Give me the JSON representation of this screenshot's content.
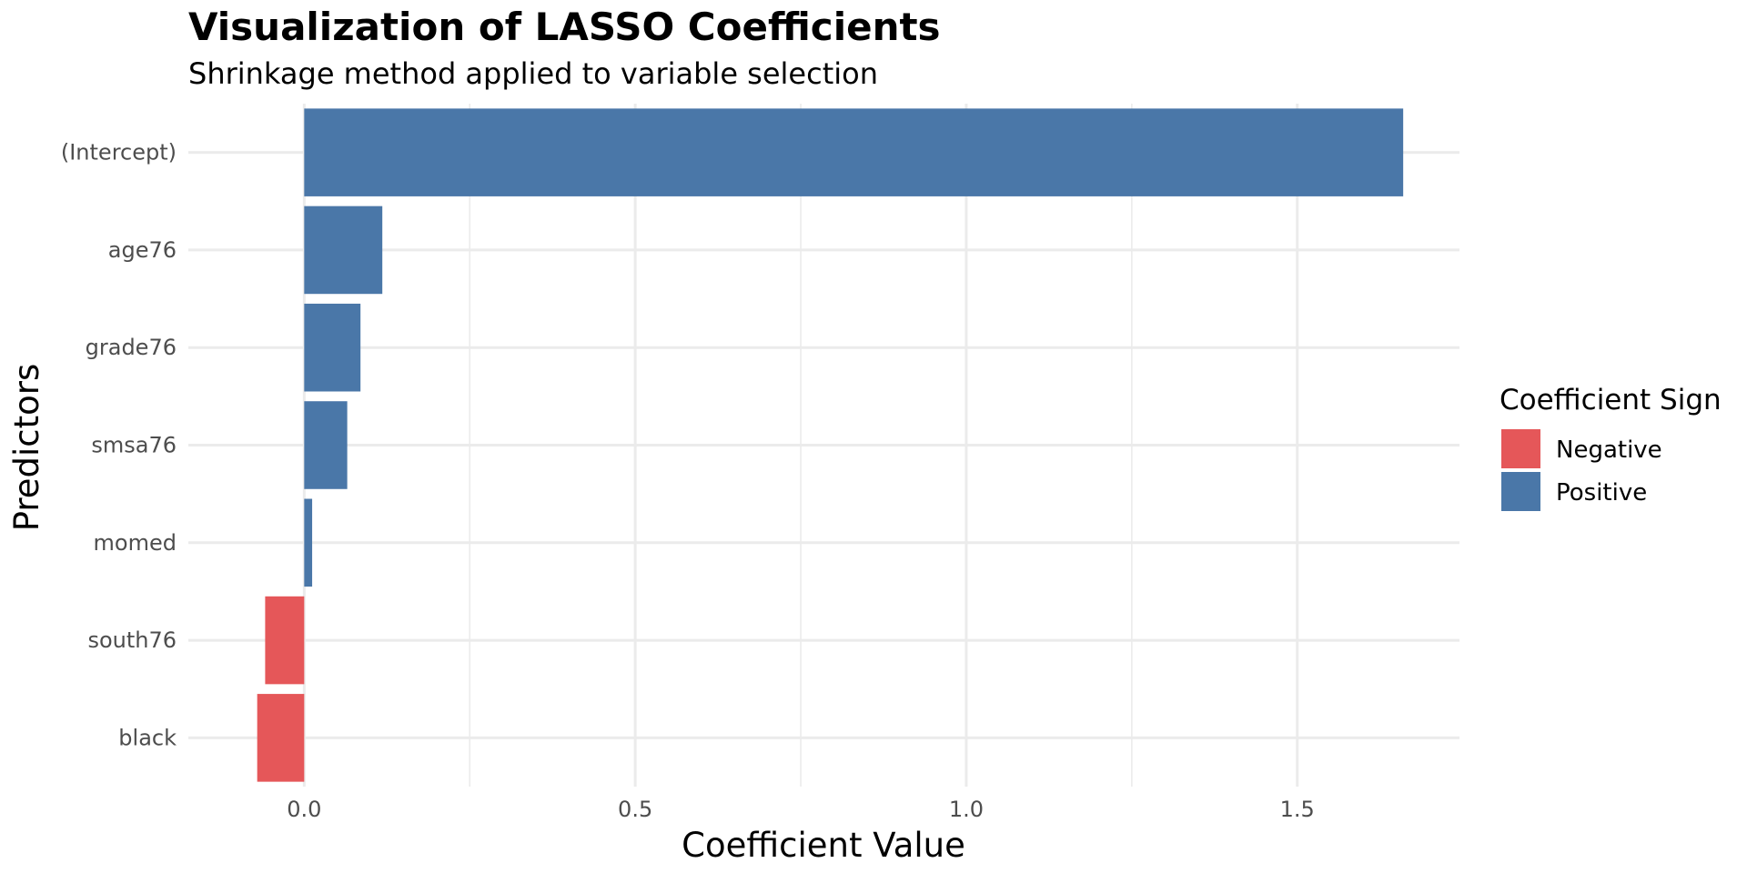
{
  "chart_data": {
    "type": "bar",
    "orientation": "horizontal",
    "title": "Visualization of LASSO Coefficients",
    "subtitle": "Shrinkage method applied to variable selection",
    "xlabel": "Coefficient Value",
    "ylabel": "Predictors",
    "categories": [
      "(Intercept)",
      "age76",
      "grade76",
      "smsa76",
      "momed",
      "south76",
      "black"
    ],
    "values": [
      1.66,
      0.118,
      0.085,
      0.065,
      0.012,
      -0.059,
      -0.071
    ],
    "signs": [
      "Positive",
      "Positive",
      "Positive",
      "Positive",
      "Positive",
      "Negative",
      "Negative"
    ],
    "x_ticks": [
      0.0,
      0.5,
      1.0,
      1.5
    ],
    "x_tick_labels": [
      "0.0",
      "0.5",
      "1.0",
      "1.5"
    ],
    "xlim": [
      -0.175,
      1.745
    ],
    "grid": true,
    "legend": {
      "title": "Coefficient Sign",
      "placement": "right",
      "entries": [
        {
          "label": "Negative",
          "color": "#e55759"
        },
        {
          "label": "Positive",
          "color": "#4a77a8"
        }
      ]
    },
    "colors": {
      "Negative": "#e55759",
      "Positive": "#4a77a8"
    }
  }
}
